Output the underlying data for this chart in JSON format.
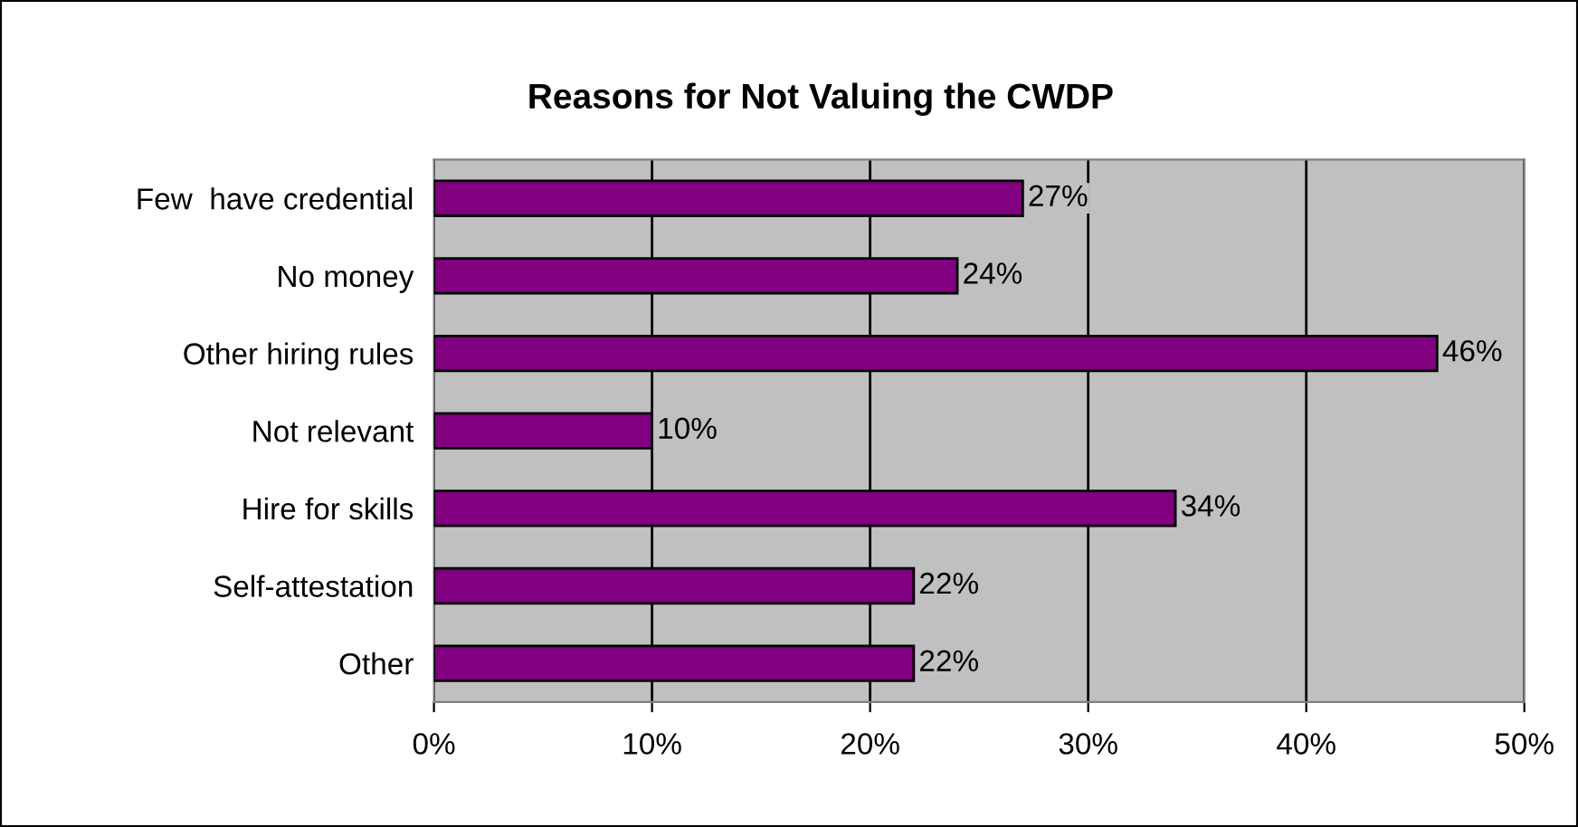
{
  "chart_data": {
    "type": "bar",
    "orientation": "horizontal",
    "title": "Reasons for Not Valuing the CWDP",
    "categories": [
      "Few  have credential",
      "No money",
      "Other hiring rules",
      "Not relevant",
      "Hire for skills",
      "Self-attestation",
      "Other"
    ],
    "values": [
      27,
      24,
      46,
      10,
      34,
      22,
      22
    ],
    "value_labels": [
      "27%",
      "24%",
      "46%",
      "10%",
      "34%",
      "22%",
      "22%"
    ],
    "color": "#800080",
    "xlim": [
      0,
      50
    ],
    "xticks": [
      {
        "value": 0,
        "label": "0%"
      },
      {
        "value": 10,
        "label": "10%"
      },
      {
        "value": 20,
        "label": "20%"
      },
      {
        "value": 30,
        "label": "30%"
      },
      {
        "value": 40,
        "label": "40%"
      },
      {
        "value": 50,
        "label": "50%"
      }
    ],
    "grid": "x",
    "legend": false
  }
}
